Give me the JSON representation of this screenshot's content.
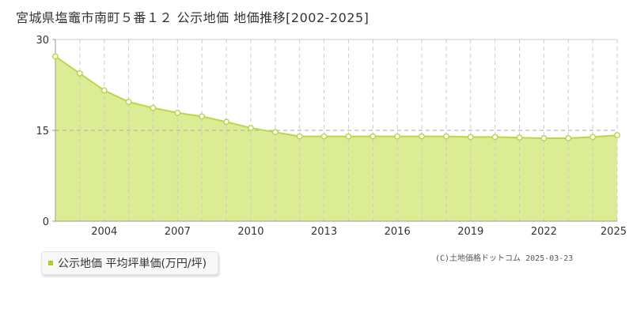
{
  "title": "宮城県塩竈市南町５番１２ 公示地価 地価推移[2002-2025]",
  "legend_label": "公示地価 平均坪単価(万円/坪)",
  "credit": "(C)土地価格ドットコム 2025-03-23",
  "colors": {
    "fill": "#dcec94",
    "line": "#b8d84a",
    "point_fill": "#ffffff",
    "legend_swatch": "#a4cf2f",
    "grid": "#cccccc"
  },
  "chart_data": {
    "type": "area",
    "x": [
      2002,
      2003,
      2004,
      2005,
      2006,
      2007,
      2008,
      2009,
      2010,
      2011,
      2012,
      2013,
      2014,
      2015,
      2016,
      2017,
      2018,
      2019,
      2020,
      2021,
      2022,
      2023,
      2024,
      2025
    ],
    "series": [
      {
        "name": "公示地価 平均坪単価(万円/坪)",
        "values": [
          27.2,
          24.4,
          21.6,
          19.7,
          18.7,
          17.9,
          17.3,
          16.4,
          15.4,
          14.7,
          14.0,
          14.0,
          14.0,
          14.0,
          14.0,
          14.0,
          14.0,
          13.9,
          13.9,
          13.8,
          13.7,
          13.7,
          13.9,
          14.2
        ]
      }
    ],
    "xtick_labels": [
      "2004",
      "2007",
      "2010",
      "2013",
      "2016",
      "2019",
      "2022",
      "2025"
    ],
    "ytick_labels": [
      "0",
      "15",
      "30"
    ],
    "ylim": [
      0,
      30
    ],
    "xlim": [
      2002,
      2025
    ],
    "grid": true
  }
}
